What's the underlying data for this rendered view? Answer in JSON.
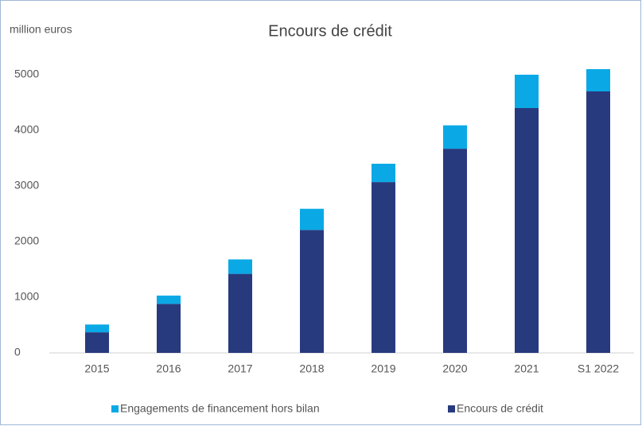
{
  "chart_data": {
    "type": "stacked_bar",
    "title": "Encours de crédit",
    "y_label": "million euros",
    "categories": [
      "2015",
      "2016",
      "2017",
      "2018",
      "2019",
      "2020",
      "2021",
      "S1 2022"
    ],
    "series": [
      {
        "name": "Encours de crédit",
        "color": "#283a7e",
        "values": [
          370,
          880,
          1420,
          2210,
          3070,
          3670,
          4400,
          4700
        ]
      },
      {
        "name": "Engagements de financement hors bilan",
        "color": "#0aa9e6",
        "values": [
          140,
          150,
          260,
          380,
          330,
          420,
          600,
          400
        ]
      }
    ],
    "ylim": [
      0,
      5000
    ],
    "yticks": [
      0,
      1000,
      2000,
      3000,
      4000,
      5000
    ],
    "grid": false
  }
}
